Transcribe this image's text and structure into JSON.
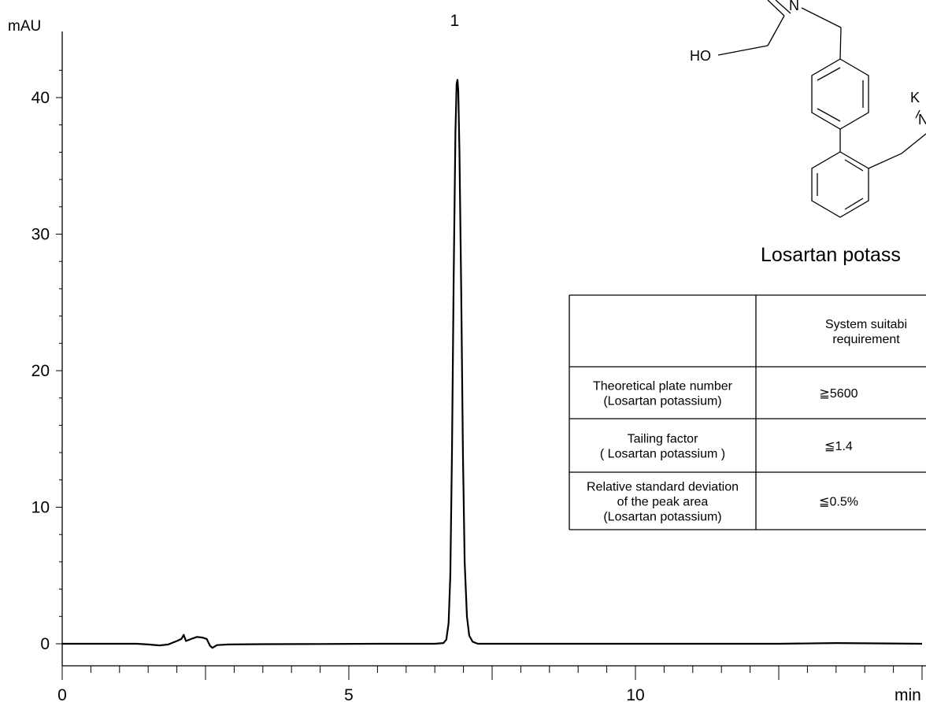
{
  "chart_data": {
    "type": "line",
    "title": "",
    "xlabel": "min",
    "ylabel": "mAU",
    "xlim": [
      0,
      15
    ],
    "ylim": [
      -2.2,
      44
    ],
    "x_ticks": [
      0,
      5,
      10
    ],
    "y_ticks": [
      0,
      10,
      20,
      30,
      40
    ],
    "grid": false,
    "peak_labels": [
      {
        "label": "1",
        "x": 6.9,
        "y": 41.3
      }
    ],
    "series": [
      {
        "color": "#000000",
        "points": [
          [
            0.0,
            0.0
          ],
          [
            1.3,
            0.0
          ],
          [
            1.5,
            -0.05
          ],
          [
            1.7,
            -0.12
          ],
          [
            1.85,
            -0.05
          ],
          [
            2.0,
            0.2
          ],
          [
            2.08,
            0.35
          ],
          [
            2.12,
            0.65
          ],
          [
            2.16,
            0.2
          ],
          [
            2.25,
            0.35
          ],
          [
            2.35,
            0.5
          ],
          [
            2.45,
            0.45
          ],
          [
            2.52,
            0.35
          ],
          [
            2.58,
            -0.15
          ],
          [
            2.62,
            -0.3
          ],
          [
            2.7,
            -0.1
          ],
          [
            2.9,
            -0.05
          ],
          [
            3.5,
            -0.03
          ],
          [
            4.5,
            -0.02
          ],
          [
            5.5,
            0.0
          ],
          [
            6.5,
            0.0
          ],
          [
            6.65,
            0.05
          ],
          [
            6.7,
            0.3
          ],
          [
            6.74,
            1.5
          ],
          [
            6.77,
            5.0
          ],
          [
            6.8,
            14.0
          ],
          [
            6.83,
            27.0
          ],
          [
            6.86,
            37.5
          ],
          [
            6.88,
            41.0
          ],
          [
            6.895,
            41.3
          ],
          [
            6.91,
            40.5
          ],
          [
            6.93,
            36.0
          ],
          [
            6.96,
            26.0
          ],
          [
            6.99,
            14.0
          ],
          [
            7.02,
            6.0
          ],
          [
            7.06,
            2.0
          ],
          [
            7.1,
            0.6
          ],
          [
            7.16,
            0.15
          ],
          [
            7.25,
            0.0
          ],
          [
            8.0,
            0.0
          ],
          [
            9.5,
            0.0
          ],
          [
            11.0,
            0.0
          ],
          [
            12.5,
            0.0
          ],
          [
            13.5,
            0.05
          ],
          [
            15.0,
            0.0
          ]
        ]
      }
    ]
  },
  "structure": {
    "atom_labels": [
      "N",
      "HO",
      "K",
      "N"
    ],
    "caption": "Losartan potass"
  },
  "suitability_table": {
    "header": [
      "",
      "System  suitabi\nrequirement"
    ],
    "rows": [
      [
        "Theoretical plate number\n(Losartan potassium)",
        "≧5600"
      ],
      [
        "Tailing factor\n( Losartan potassium )",
        "≦1.4"
      ],
      [
        "Relative standard deviation\nof the peak area\n(Losartan potassium)",
        "≦0.5%"
      ]
    ]
  }
}
